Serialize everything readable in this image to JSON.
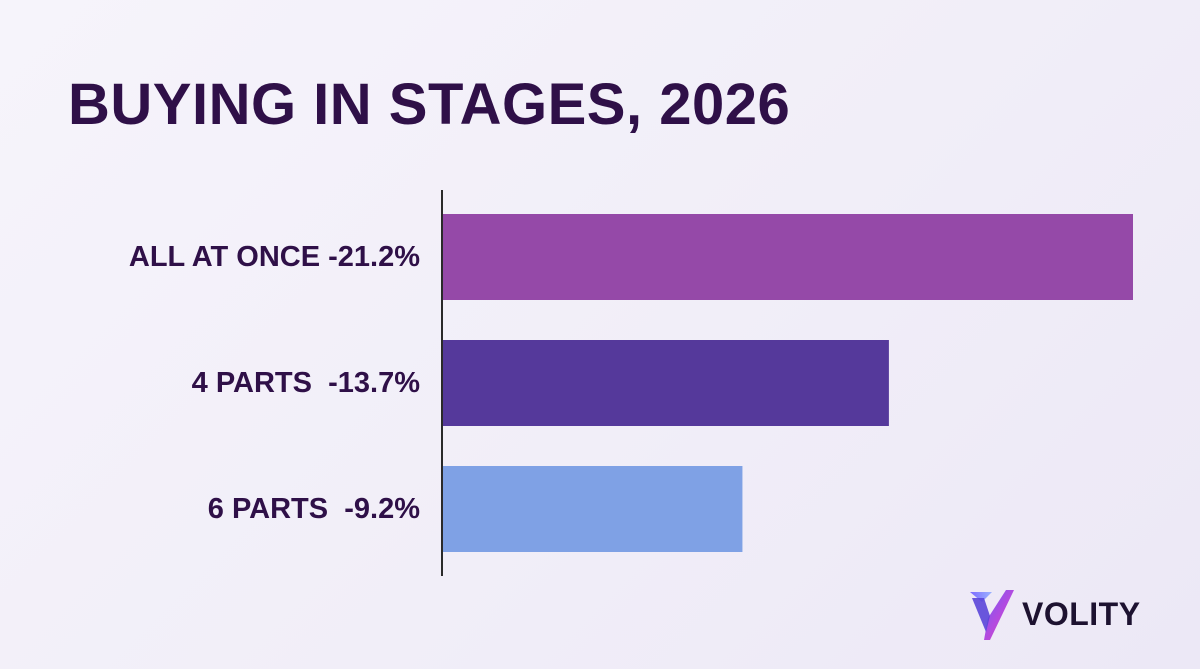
{
  "chart_data": {
    "type": "bar",
    "orientation": "horizontal",
    "title": "BUYING IN STAGES, 2026",
    "categories": [
      "ALL AT ONCE",
      "4 PARTS",
      "6 PARTS"
    ],
    "values": [
      -21.2,
      -13.7,
      -9.2
    ],
    "labels": [
      "ALL AT ONCE -21.2%",
      "4 PARTS  -13.7%",
      "6 PARTS  -9.2%"
    ],
    "colors": [
      "#9549a8",
      "#55399b",
      "#7fa1e5"
    ],
    "xlim": [
      0,
      21.2
    ],
    "grid": false,
    "legend": "none"
  },
  "brand": {
    "name": "VOLITY",
    "icon": "volity-logo-icon"
  }
}
